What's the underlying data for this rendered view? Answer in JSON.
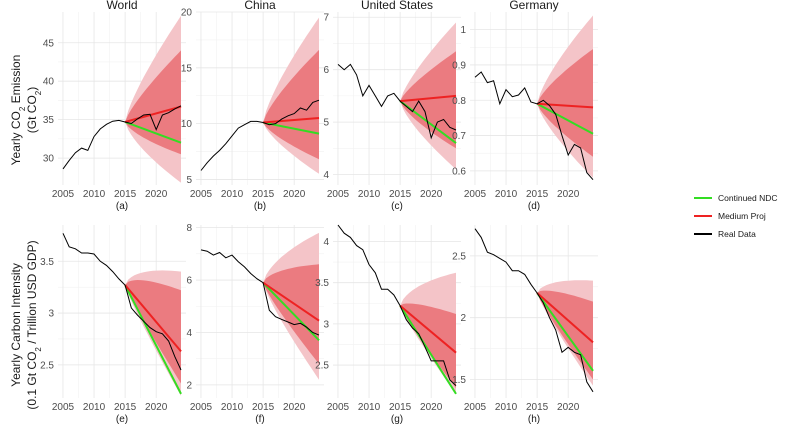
{
  "legend": {
    "ndc": {
      "label": "Continued NDC",
      "color": "#33dd22"
    },
    "medium": {
      "label": "Medium Proj",
      "color": "#ee2222"
    },
    "real": {
      "label": "Real Data",
      "color": "#000000"
    }
  },
  "band_colors": {
    "outer": "#f4c4c8",
    "inner": "#eb7b80"
  },
  "row_labels": [
    {
      "line1": "Yearly CO",
      "sub1": "2",
      "line1b": " Emission",
      "line2": "(Gt CO",
      "sub2": "2",
      "line2b": ")"
    },
    {
      "line1": "Yearly Carbon Intensity",
      "sub1": "",
      "line1b": "",
      "line2": "(0.1 Gt CO",
      "sub2": "2",
      "line2b": " / Trillion USD GDP)"
    }
  ],
  "chart_data": [
    {
      "type": "line",
      "id": "a",
      "row": 0,
      "col": 0,
      "title": "World",
      "sublabel": "(a)",
      "xlim": [
        2004.2,
        2024.8
      ],
      "ylim": [
        26.5,
        49
      ],
      "xticks": [
        2005,
        2010,
        2015,
        2020
      ],
      "yticks": [
        30,
        35,
        40,
        45
      ],
      "start": [
        2015,
        34.7
      ],
      "real": {
        "x": [
          2005,
          2006,
          2007,
          2008,
          2009,
          2010,
          2011,
          2012,
          2013,
          2014,
          2015,
          2016,
          2017,
          2018,
          2019,
          2020,
          2021,
          2022,
          2023,
          2024
        ],
        "y": [
          28.6,
          29.7,
          30.7,
          31.3,
          31.0,
          32.8,
          33.8,
          34.4,
          34.8,
          34.9,
          34.7,
          34.5,
          35.1,
          35.6,
          35.7,
          33.7,
          35.6,
          35.9,
          36.4,
          36.8
        ]
      },
      "ndc_end": 32.0,
      "medium_end": 36.7,
      "outer_end": [
        26.8,
        48.5
      ],
      "inner_end": [
        30.5,
        44.0
      ]
    },
    {
      "type": "line",
      "id": "b",
      "row": 0,
      "col": 1,
      "title": "China",
      "sublabel": "(b)",
      "xlim": [
        2004.2,
        2024.8
      ],
      "ylim": [
        4.5,
        20
      ],
      "xticks": [
        2005,
        2010,
        2015,
        2020
      ],
      "yticks": [
        5,
        10,
        15,
        20
      ],
      "start": [
        2015,
        10.1
      ],
      "real": {
        "x": [
          2005,
          2006,
          2007,
          2008,
          2009,
          2010,
          2011,
          2012,
          2013,
          2014,
          2015,
          2016,
          2017,
          2018,
          2019,
          2020,
          2021,
          2022,
          2023,
          2024
        ],
        "y": [
          5.8,
          6.5,
          7.1,
          7.6,
          8.2,
          8.9,
          9.6,
          9.9,
          10.2,
          10.2,
          10.1,
          9.9,
          10.0,
          10.4,
          10.7,
          10.9,
          11.4,
          11.2,
          11.9,
          12.1
        ]
      },
      "ndc_end": 9.1,
      "medium_end": 10.5,
      "outer_end": [
        5.5,
        19.5
      ],
      "inner_end": [
        6.8,
        16.6
      ]
    },
    {
      "type": "line",
      "id": "c",
      "row": 0,
      "col": 2,
      "title": "United States",
      "sublabel": "(c)",
      "xlim": [
        2004.2,
        2024.8
      ],
      "ylim": [
        3.8,
        7.1
      ],
      "xticks": [
        2005,
        2010,
        2015,
        2020
      ],
      "yticks": [
        4,
        5,
        6,
        7
      ],
      "start": [
        2015,
        5.4
      ],
      "real": {
        "x": [
          2005,
          2006,
          2007,
          2008,
          2009,
          2010,
          2011,
          2012,
          2013,
          2014,
          2015,
          2016,
          2017,
          2018,
          2019,
          2020,
          2021,
          2022,
          2023,
          2024
        ],
        "y": [
          6.1,
          6.0,
          6.1,
          5.9,
          5.5,
          5.7,
          5.5,
          5.3,
          5.5,
          5.55,
          5.4,
          5.3,
          5.2,
          5.4,
          5.2,
          4.7,
          5.0,
          5.05,
          4.9,
          4.85
        ]
      },
      "ndc_end": 4.6,
      "medium_end": 5.5,
      "outer_end": [
        4.1,
        6.9
      ],
      "inner_end": [
        4.5,
        6.35
      ]
    },
    {
      "type": "line",
      "id": "d",
      "row": 0,
      "col": 3,
      "title": "Germany",
      "sublabel": "(d)",
      "xlim": [
        2004.2,
        2024.8
      ],
      "ylim": [
        0.56,
        1.05
      ],
      "xticks": [
        2005,
        2010,
        2015,
        2020
      ],
      "yticks": [
        0.6,
        0.7,
        0.8,
        0.9,
        1.0
      ],
      "start": [
        2015,
        0.79
      ],
      "real": {
        "x": [
          2005,
          2006,
          2007,
          2008,
          2009,
          2010,
          2011,
          2012,
          2013,
          2014,
          2015,
          2016,
          2017,
          2018,
          2019,
          2020,
          2021,
          2022,
          2023,
          2024
        ],
        "y": [
          0.865,
          0.88,
          0.85,
          0.855,
          0.79,
          0.83,
          0.81,
          0.815,
          0.835,
          0.795,
          0.79,
          0.8,
          0.785,
          0.76,
          0.7,
          0.645,
          0.675,
          0.665,
          0.595,
          0.575
        ]
      },
      "ndc_end": 0.705,
      "medium_end": 0.78,
      "outer_end": [
        0.58,
        1.04
      ],
      "inner_end": [
        0.64,
        0.945
      ]
    },
    {
      "type": "line",
      "id": "e",
      "row": 1,
      "col": 0,
      "title": "",
      "sublabel": "(e)",
      "xlim": [
        2004.2,
        2024.8
      ],
      "ylim": [
        2.18,
        3.85
      ],
      "xticks": [
        2005,
        2010,
        2015,
        2020
      ],
      "yticks": [
        2.5,
        3.0,
        3.5
      ],
      "start": [
        2015,
        3.27
      ],
      "real": {
        "x": [
          2005,
          2006,
          2007,
          2008,
          2009,
          2010,
          2011,
          2012,
          2013,
          2014,
          2015,
          2016,
          2017,
          2018,
          2019,
          2020,
          2021,
          2022,
          2023,
          2024
        ],
        "y": [
          3.77,
          3.64,
          3.62,
          3.58,
          3.58,
          3.57,
          3.5,
          3.46,
          3.4,
          3.33,
          3.27,
          3.05,
          2.98,
          2.92,
          2.86,
          2.82,
          2.8,
          2.73,
          2.58,
          2.45
        ]
      },
      "ndc_end": 2.22,
      "medium_end": 2.63,
      "outer_end": [
        2.2,
        3.4
      ],
      "inner_end": [
        2.32,
        3.22
      ]
    },
    {
      "type": "line",
      "id": "f",
      "row": 1,
      "col": 1,
      "title": "",
      "sublabel": "(f)",
      "xlim": [
        2004.2,
        2024.8
      ],
      "ylim": [
        1.5,
        8.1
      ],
      "xticks": [
        2005,
        2010,
        2015,
        2020
      ],
      "yticks": [
        2,
        4,
        6,
        8
      ],
      "start": [
        2015,
        5.9
      ],
      "real": {
        "x": [
          2005,
          2006,
          2007,
          2008,
          2009,
          2010,
          2011,
          2012,
          2013,
          2014,
          2015,
          2016,
          2017,
          2018,
          2019,
          2020,
          2021,
          2022,
          2023,
          2024
        ],
        "y": [
          7.15,
          7.1,
          6.95,
          7.05,
          6.85,
          6.95,
          6.7,
          6.5,
          6.25,
          6.05,
          5.9,
          4.85,
          4.6,
          4.5,
          4.4,
          4.3,
          4.35,
          4.2,
          4.0,
          3.9
        ]
      },
      "ndc_end": 3.7,
      "medium_end": 4.45,
      "outer_end": [
        2.2,
        7.8
      ],
      "inner_end": [
        2.8,
        6.6
      ]
    },
    {
      "type": "line",
      "id": "g",
      "row": 1,
      "col": 2,
      "title": "",
      "sublabel": "(g)",
      "xlim": [
        2004.2,
        2024.8
      ],
      "ylim": [
        2.1,
        4.2
      ],
      "xticks": [
        2005,
        2010,
        2015,
        2020
      ],
      "yticks": [
        2.5,
        3.0,
        3.5,
        4.0
      ],
      "start": [
        2015,
        3.22
      ],
      "real": {
        "x": [
          2005,
          2006,
          2007,
          2008,
          2009,
          2010,
          2011,
          2012,
          2013,
          2014,
          2015,
          2016,
          2017,
          2018,
          2019,
          2020,
          2021,
          2022,
          2023,
          2024
        ],
        "y": [
          4.2,
          4.1,
          4.05,
          3.95,
          3.9,
          3.72,
          3.62,
          3.42,
          3.42,
          3.35,
          3.22,
          3.05,
          2.95,
          2.88,
          2.72,
          2.55,
          2.55,
          2.55,
          2.32,
          2.25
        ]
      },
      "ndc_end": 2.15,
      "medium_end": 2.65,
      "outer_end": [
        2.15,
        3.62
      ],
      "inner_end": [
        2.22,
        3.12
      ]
    },
    {
      "type": "line",
      "id": "h",
      "row": 1,
      "col": 3,
      "title": "",
      "sublabel": "(h)",
      "xlim": [
        2004.2,
        2024.8
      ],
      "ylim": [
        1.35,
        2.75
      ],
      "xticks": [
        2005,
        2010,
        2015,
        2020
      ],
      "yticks": [
        1.5,
        2.0,
        2.5
      ],
      "start": [
        2015,
        2.2
      ],
      "real": {
        "x": [
          2005,
          2006,
          2007,
          2008,
          2009,
          2010,
          2011,
          2012,
          2013,
          2014,
          2015,
          2016,
          2017,
          2018,
          2019,
          2020,
          2021,
          2022,
          2023,
          2024
        ],
        "y": [
          2.72,
          2.65,
          2.53,
          2.51,
          2.48,
          2.45,
          2.38,
          2.38,
          2.35,
          2.27,
          2.2,
          2.12,
          2.0,
          1.9,
          1.72,
          1.76,
          1.72,
          1.7,
          1.48,
          1.4
        ]
      },
      "ndc_end": 1.57,
      "medium_end": 1.8,
      "outer_end": [
        1.45,
        2.3
      ],
      "inner_end": [
        1.5,
        2.13
      ]
    }
  ]
}
